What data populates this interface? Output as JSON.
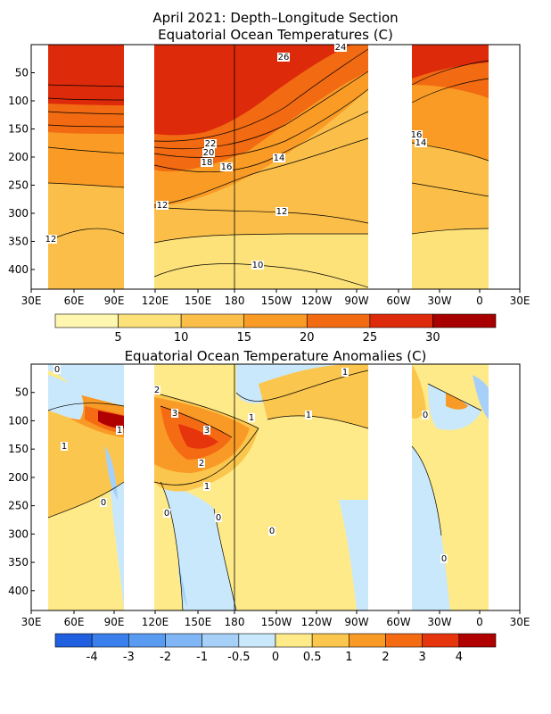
{
  "chart_data": [
    {
      "type": "heatmap",
      "title": "April 2021: Depth–Longitude Section",
      "subtitle": "Equatorial Ocean Temperatures (C)",
      "x_ticks": [
        "30E",
        "60E",
        "90E",
        "120E",
        "150E",
        "180",
        "150W",
        "120W",
        "90W",
        "60W",
        "30W",
        "0",
        "30E"
      ],
      "y_ticks": [
        "50",
        "100",
        "150",
        "200",
        "250",
        "300",
        "350",
        "400"
      ],
      "ylim": [
        0,
        435
      ],
      "colorbar_labels": [
        "5",
        "10",
        "15",
        "20",
        "25",
        "30"
      ],
      "colorbar_colors": [
        "#fff7b0",
        "#fde27a",
        "#fbbf49",
        "#f99b25",
        "#f26a12",
        "#dd2a0a",
        "#a80000"
      ],
      "contour_labels": [
        "26",
        "24",
        "22",
        "20",
        "18",
        "16",
        "14",
        "12",
        "12",
        "12",
        "10",
        "16",
        "14"
      ]
    },
    {
      "type": "heatmap",
      "title": "Equatorial Ocean Temperature Anomalies (C)",
      "x_ticks": [
        "30E",
        "60E",
        "90E",
        "120E",
        "150E",
        "180",
        "150W",
        "120W",
        "90W",
        "60W",
        "30W",
        "0",
        "30E"
      ],
      "y_ticks": [
        "50",
        "100",
        "150",
        "200",
        "250",
        "300",
        "350",
        "400"
      ],
      "ylim": [
        0,
        435
      ],
      "colorbar_labels": [
        "-4",
        "-3",
        "-2",
        "-1",
        "-0.5",
        "0",
        "0.5",
        "1",
        "2",
        "3",
        "4"
      ],
      "colorbar_colors": [
        "#1f5fe0",
        "#3a7fec",
        "#5a9bf2",
        "#80b6f5",
        "#a6d0f8",
        "#c9e8fb",
        "#ffea8a",
        "#fbc64d",
        "#f99a26",
        "#f56b14",
        "#e6350c",
        "#b00000"
      ],
      "contour_labels": [
        "0",
        "2",
        "3",
        "3",
        "2",
        "1",
        "1",
        "1",
        "1",
        "1",
        "0",
        "0",
        "0",
        "0",
        "0",
        "0",
        "1"
      ]
    }
  ]
}
